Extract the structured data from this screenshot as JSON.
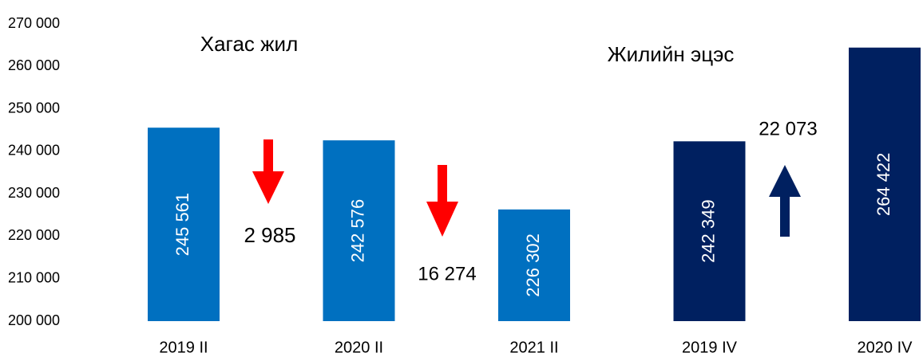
{
  "chart_data": {
    "type": "bar",
    "categories": [
      "2019 II",
      "2020 II",
      "2021 II",
      "2019 IV",
      "2020 IV"
    ],
    "values": [
      245561,
      242576,
      226302,
      242349,
      264422
    ],
    "value_labels": [
      "245 561",
      "242 576",
      "226 302",
      "242 349",
      "264 422"
    ],
    "colors": [
      "#0070c0",
      "#0070c0",
      "#0070c0",
      "#002060",
      "#002060"
    ],
    "ylim": [
      200000,
      270000
    ],
    "yticks": [
      {
        "value": 200000,
        "label": "200 000"
      },
      {
        "value": 210000,
        "label": "210 000"
      },
      {
        "value": 220000,
        "label": "220 000"
      },
      {
        "value": 230000,
        "label": "230 000"
      },
      {
        "value": 240000,
        "label": "240 000"
      },
      {
        "value": 250000,
        "label": "250 000"
      },
      {
        "value": 260000,
        "label": "260 000"
      },
      {
        "value": 270000,
        "label": "270 000"
      }
    ],
    "grid": false,
    "annotations": [
      "Хагас жил",
      "Жилийн эцэс",
      "2 985",
      "16 274",
      "22 073"
    ]
  }
}
